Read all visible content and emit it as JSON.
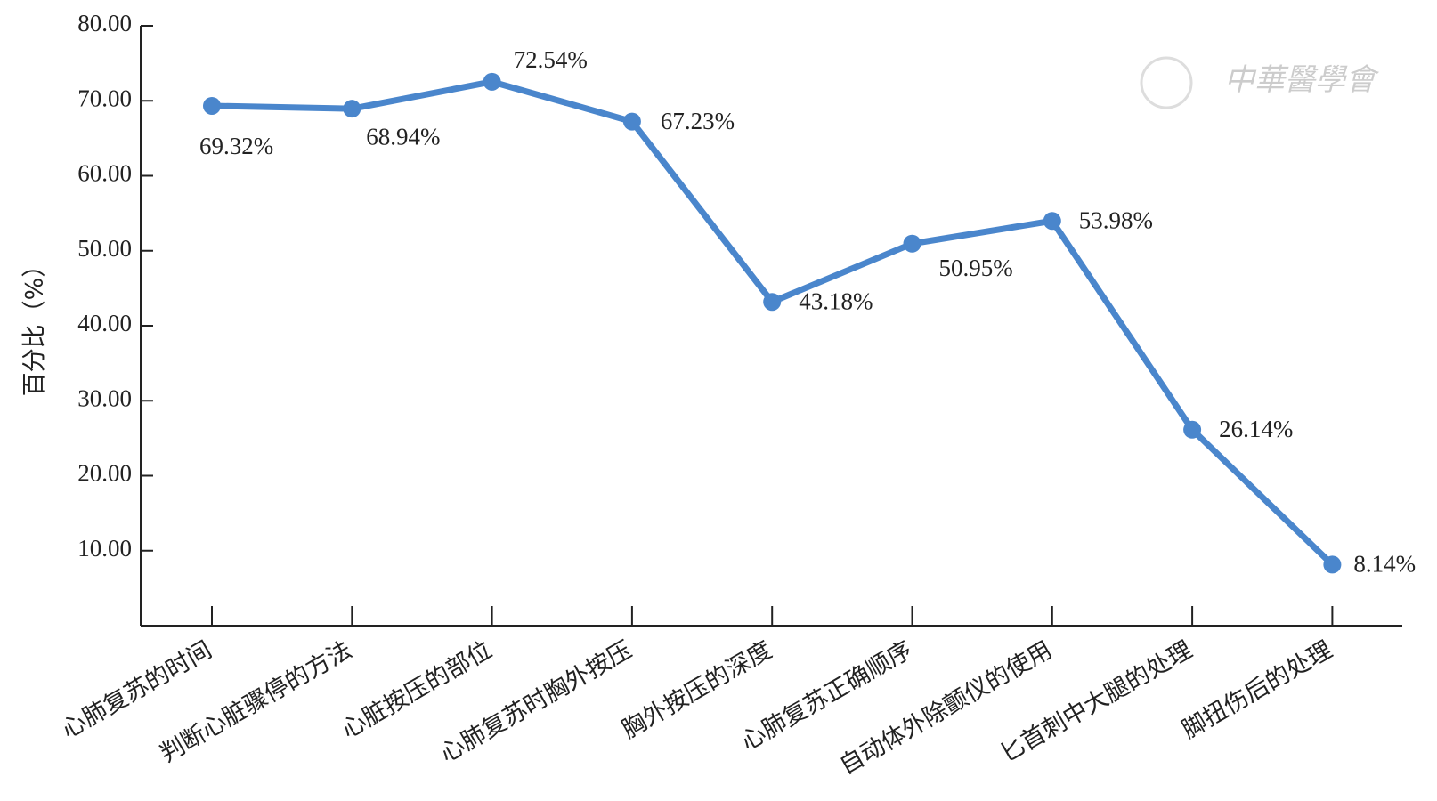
{
  "chart_data": {
    "type": "line",
    "y_label": "百分比（%）",
    "watermark": "中華醫學會",
    "categories": [
      "心肺复苏的时间",
      "判断心脏骤停的方法",
      "心脏按压的部位",
      "心肺复苏时胸外按压",
      "胸外按压的深度",
      "心肺复苏正确顺序",
      "自动体外除颤仪的使用",
      "匕首刺中大腿的处理",
      "脚扭伤后的处理"
    ],
    "values": [
      69.32,
      68.94,
      72.54,
      67.23,
      43.18,
      50.95,
      53.98,
      26.14,
      8.14
    ],
    "value_labels": [
      "69.32%",
      "68.94%",
      "72.54%",
      "67.23%",
      "43.18%",
      "50.95%",
      "53.98%",
      "26.14%",
      "8.14%"
    ],
    "color": "#4a86cc",
    "ylim": [
      0,
      80
    ],
    "yticks": [
      {
        "value": 10,
        "label": "10.00"
      },
      {
        "value": 20,
        "label": "20.00"
      },
      {
        "value": 30,
        "label": "30.00"
      },
      {
        "value": 40,
        "label": "40.00"
      },
      {
        "value": 50,
        "label": "50.00"
      },
      {
        "value": 60,
        "label": "60.00"
      },
      {
        "value": 70,
        "label": "70.00"
      },
      {
        "value": 80,
        "label": "80.00"
      }
    ]
  }
}
